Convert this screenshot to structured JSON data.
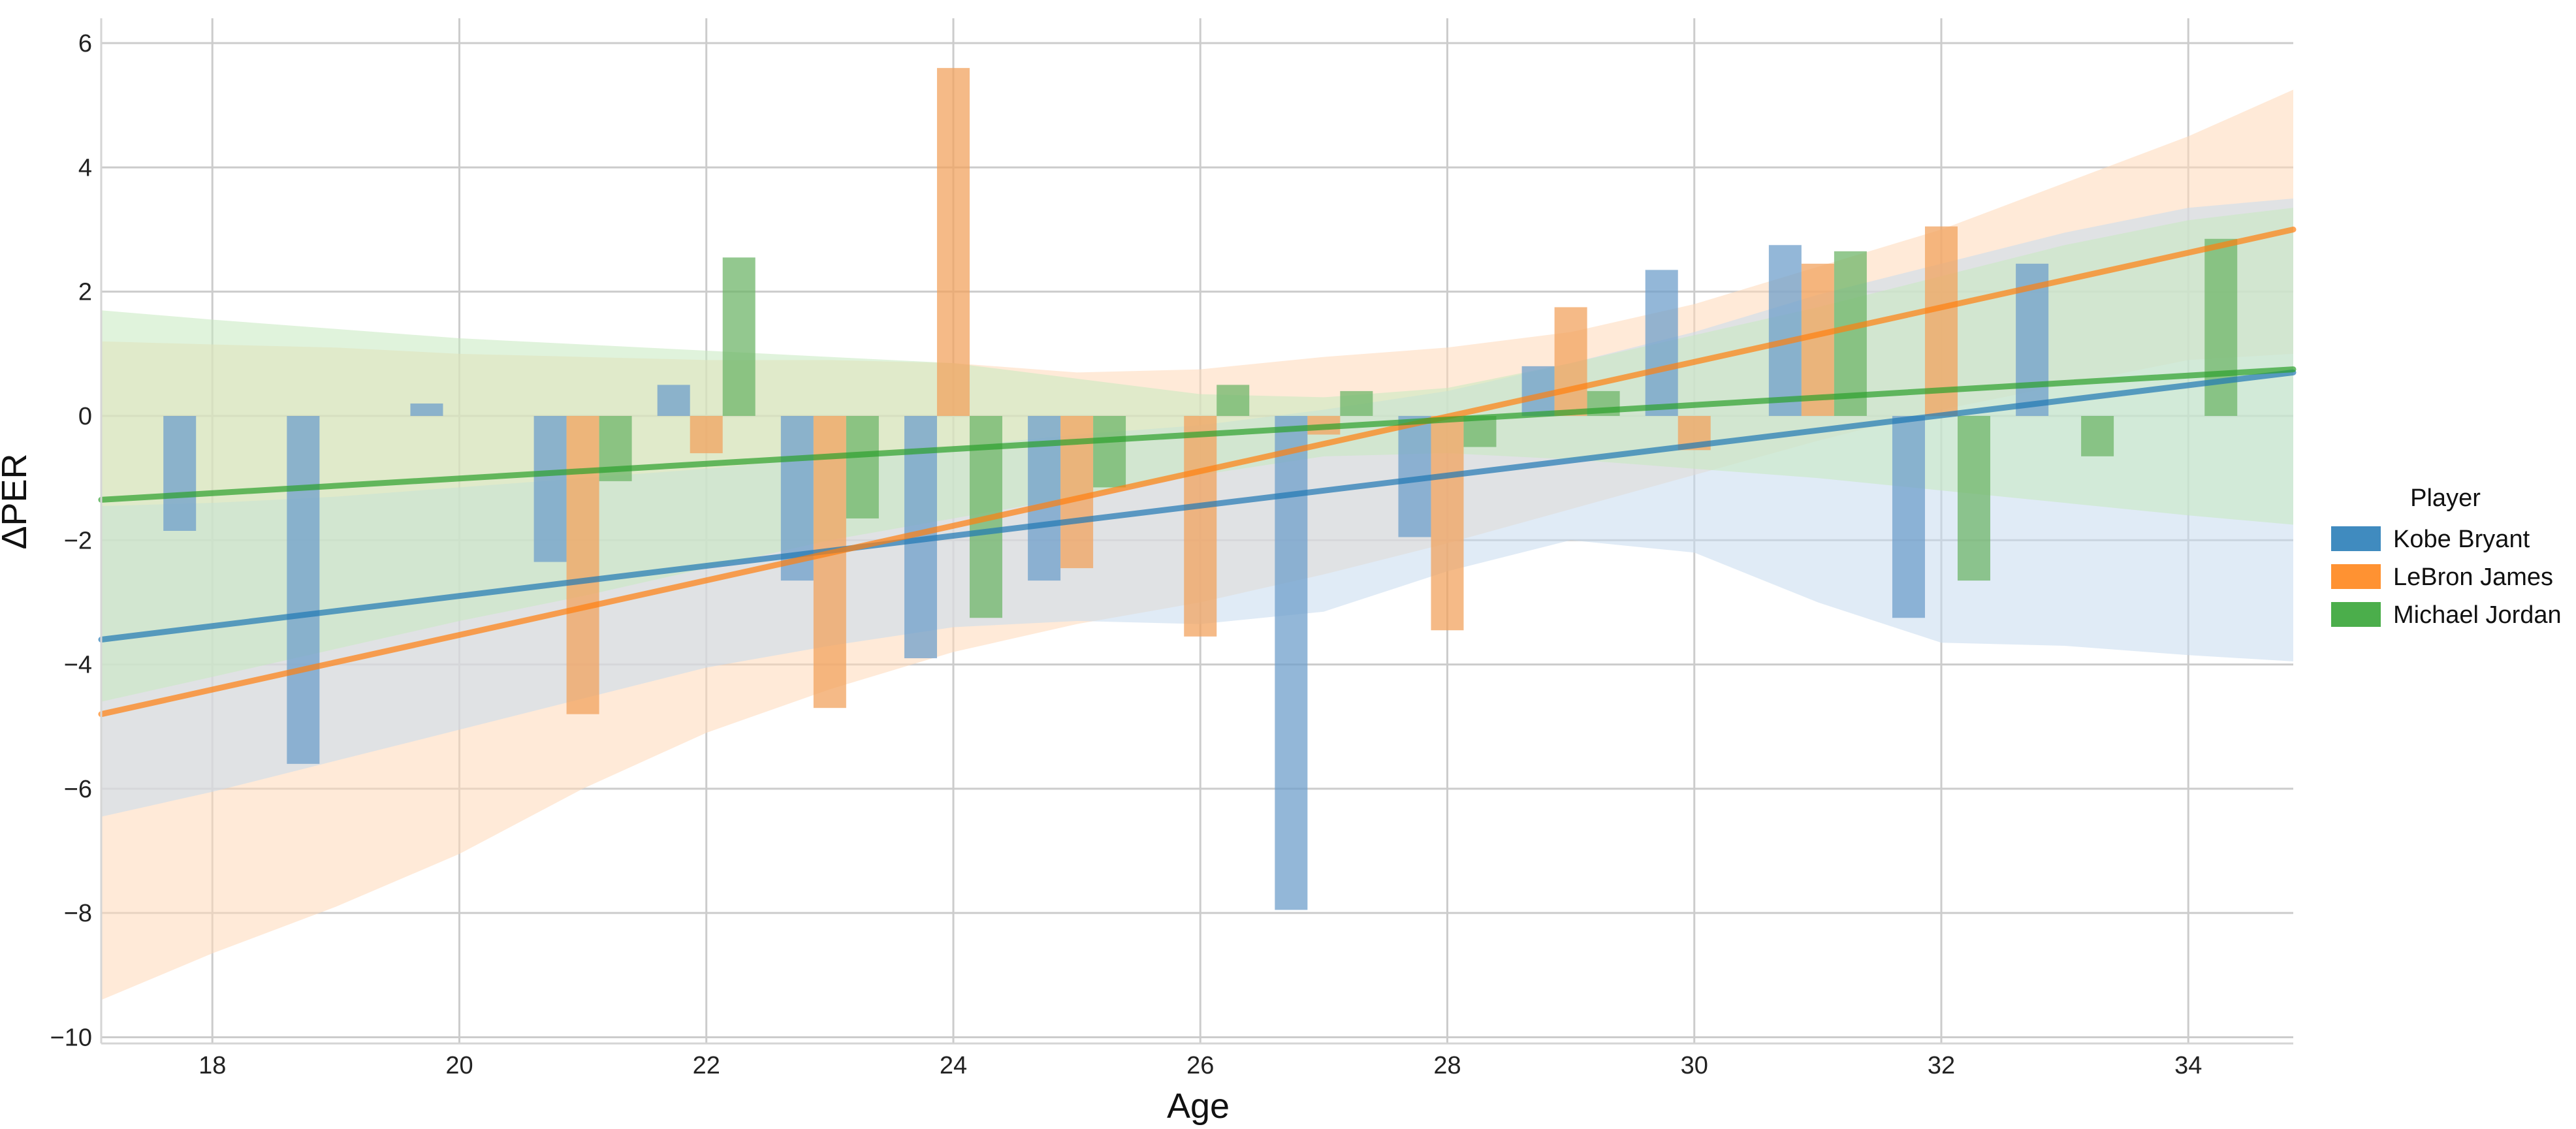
{
  "chart_data": {
    "type": "bar",
    "title": "",
    "xlabel": "Age",
    "ylabel": "ΔPER",
    "xlim": [
      17.1,
      34.85
    ],
    "ylim": [
      -10.1,
      6.4
    ],
    "x_ticks": [
      18,
      20,
      22,
      24,
      26,
      28,
      30,
      32,
      34
    ],
    "y_ticks": [
      6,
      4,
      2,
      0,
      -2,
      -4,
      -6,
      -8,
      -10
    ],
    "grid": true,
    "legend": {
      "title": "Player",
      "placement": "right",
      "entries": [
        "Kobe Bryant",
        "LeBron James",
        "Michael Jordan"
      ]
    },
    "series": [
      {
        "name": "Kobe Bryant",
        "color": "#1f77b4",
        "bar_color": "#6f9fcb",
        "band_color": "#c6dbef",
        "x": [
          18,
          19,
          20,
          21,
          22,
          23,
          24,
          25,
          27,
          28,
          29,
          30,
          31,
          32,
          33
        ],
        "values": [
          -1.85,
          -5.6,
          0.2,
          -2.35,
          0.5,
          -2.65,
          -3.9,
          -2.65,
          -7.95,
          -1.95,
          0.8,
          2.35,
          2.75,
          -3.25,
          2.45
        ],
        "trend": {
          "x0": 17.1,
          "y0": -3.6,
          "x1": 34.85,
          "y1": 0.7
        }
      },
      {
        "name": "LeBron James",
        "color": "#ff7f0e",
        "bar_color": "#f2a35f",
        "band_color": "#ffd9b8",
        "x": [
          21,
          22,
          23,
          24,
          25,
          26,
          27,
          28,
          29,
          30,
          31,
          32
        ],
        "values": [
          -4.8,
          -0.6,
          -4.7,
          5.6,
          -2.45,
          -3.55,
          -0.3,
          -3.45,
          1.75,
          -0.55,
          2.45,
          3.05
        ],
        "trend": {
          "x0": 17.1,
          "y0": -4.8,
          "x1": 34.85,
          "y1": 3.0
        }
      },
      {
        "name": "Michael Jordan",
        "color": "#2ca02c",
        "bar_color": "#6fb56a",
        "band_color": "#c7e9c0",
        "x": [
          21,
          22,
          23,
          24,
          25,
          26,
          27,
          28,
          29,
          31,
          32,
          33,
          34
        ],
        "values": [
          -1.05,
          2.55,
          -1.65,
          -3.25,
          -1.15,
          0.5,
          0.4,
          -0.5,
          0.4,
          2.65,
          -2.65,
          -0.65,
          2.85
        ],
        "trend": {
          "x0": 17.1,
          "y0": -1.35,
          "x1": 34.85,
          "y1": 0.75
        }
      }
    ],
    "confidence_bands": [
      {
        "series": "LeBron James",
        "x": [
          17.1,
          18,
          19,
          20,
          21,
          22,
          23,
          24,
          25,
          26,
          27,
          28,
          29,
          30,
          31,
          32,
          33,
          34,
          34.85
        ],
        "upper": [
          1.2,
          1.15,
          1.1,
          1.0,
          0.95,
          0.9,
          0.9,
          0.85,
          0.7,
          0.75,
          0.95,
          1.1,
          1.35,
          1.8,
          2.4,
          3.0,
          3.75,
          4.5,
          5.25
        ],
        "lower": [
          -9.4,
          -8.65,
          -7.9,
          -7.05,
          -6.0,
          -5.1,
          -4.4,
          -3.8,
          -3.35,
          -3.0,
          -2.55,
          -2.05,
          -1.5,
          -0.95,
          -0.4,
          0.1,
          0.5,
          0.9,
          1.0
        ]
      },
      {
        "series": "Kobe Bryant",
        "x": [
          17.1,
          18,
          19,
          20,
          21,
          22,
          23,
          24,
          25,
          26,
          27,
          28,
          29,
          30,
          31,
          32,
          33,
          34,
          34.85
        ],
        "upper": [
          -1.45,
          -1.4,
          -1.3,
          -1.15,
          -1.0,
          -0.85,
          -0.65,
          -0.5,
          -0.3,
          -0.15,
          0.1,
          0.4,
          0.85,
          1.35,
          1.95,
          2.45,
          2.95,
          3.35,
          3.5
        ],
        "lower": [
          -6.45,
          -6.05,
          -5.55,
          -5.05,
          -4.55,
          -4.05,
          -3.7,
          -3.4,
          -3.3,
          -3.35,
          -3.15,
          -2.5,
          -2.0,
          -2.2,
          -3.0,
          -3.65,
          -3.7,
          -3.85,
          -3.95
        ]
      },
      {
        "series": "Michael Jordan",
        "x": [
          17.1,
          18,
          19,
          20,
          21,
          22,
          23,
          24,
          25,
          26,
          27,
          28,
          29,
          30,
          31,
          32,
          33,
          34,
          34.85
        ],
        "upper": [
          1.7,
          1.55,
          1.4,
          1.25,
          1.15,
          1.05,
          0.95,
          0.85,
          0.6,
          0.35,
          0.3,
          0.45,
          0.85,
          1.3,
          1.75,
          2.25,
          2.75,
          3.15,
          3.35
        ],
        "lower": [
          -4.6,
          -4.2,
          -3.75,
          -3.3,
          -2.9,
          -2.45,
          -2.0,
          -1.65,
          -1.3,
          -0.95,
          -0.65,
          -0.6,
          -0.7,
          -0.85,
          -1.0,
          -1.2,
          -1.4,
          -1.6,
          -1.75
        ]
      }
    ]
  }
}
